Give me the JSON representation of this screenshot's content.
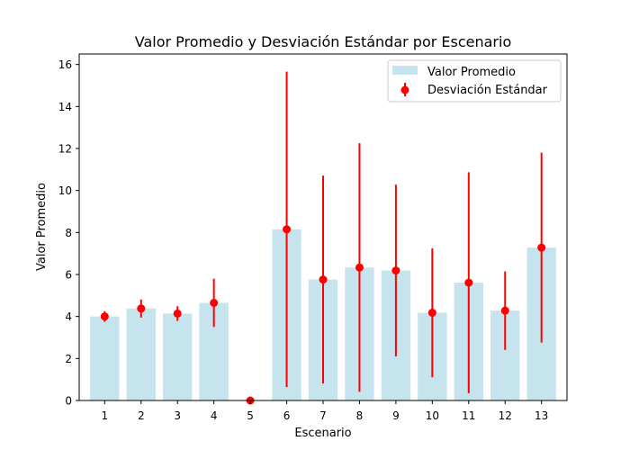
{
  "chart_data": {
    "type": "bar",
    "title": "Valor Promedio y Desviación Estándar por Escenario",
    "xlabel": "Escenario",
    "ylabel": "Valor Promedio",
    "categories": [
      "1",
      "2",
      "3",
      "4",
      "5",
      "6",
      "7",
      "8",
      "9",
      "10",
      "11",
      "12",
      "13"
    ],
    "series": [
      {
        "name": "Valor Promedio",
        "kind": "bar",
        "color": "#add8e6",
        "values": [
          4.0,
          4.38,
          4.14,
          4.65,
          0.0,
          8.15,
          5.76,
          6.33,
          6.19,
          4.18,
          5.61,
          4.28,
          7.28
        ]
      },
      {
        "name": "Desviación Estándar",
        "kind": "errorbar",
        "color": "#ff0000",
        "std": [
          0.25,
          0.43,
          0.35,
          1.15,
          0.0,
          7.51,
          4.95,
          5.92,
          4.09,
          3.07,
          5.26,
          1.87,
          4.52
        ]
      }
    ],
    "ylim": [
      0,
      16.5
    ],
    "yticks": [
      "0",
      "2",
      "4",
      "6",
      "8",
      "10",
      "12",
      "14",
      "16"
    ],
    "grid": false,
    "legend_position": "top-right"
  }
}
